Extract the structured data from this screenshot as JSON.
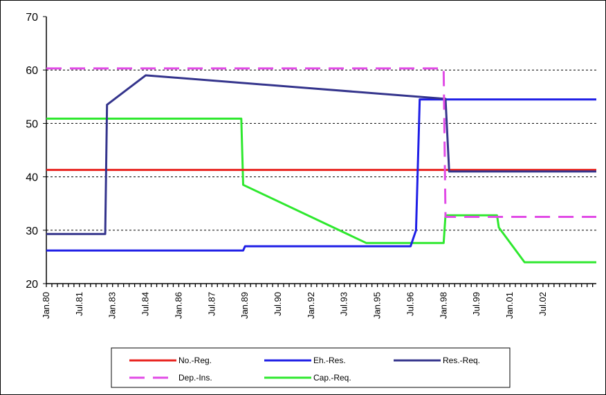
{
  "chart_data": {
    "type": "line",
    "title": "",
    "xlabel": "",
    "ylabel": "",
    "ylim": [
      20,
      70
    ],
    "yticks": [
      20,
      30,
      40,
      50,
      60,
      70
    ],
    "x_range": [
      "Jan.80",
      "Dec.04"
    ],
    "xtick_labels": [
      "Jan.80",
      "Jul.81",
      "Jan.83",
      "Jul.84",
      "Jan.86",
      "Jul.87",
      "Jan.89",
      "Jul.90",
      "Jan.92",
      "Jul.93",
      "Jan.95",
      "Jul.96",
      "Jan.98",
      "Jul.99",
      "Jan.01",
      "Jul.02"
    ],
    "grid": "horizontal dotted at 30, 40, 50, 60",
    "legend_position": "bottom",
    "series": [
      {
        "name": "No.-Reg.",
        "color": "#e8221e",
        "dash": "solid",
        "x": [
          "Jan.80",
          "Dec.04"
        ],
        "y": [
          41.3,
          41.3
        ]
      },
      {
        "name": "Eh.-Res.",
        "color": "#1e1ee6",
        "dash": "solid",
        "x": [
          "Jan.80",
          "Dec.88",
          "Jan.89",
          "Jul.96",
          "Oct.96",
          "Dec.96",
          "Dec.04"
        ],
        "y": [
          26.2,
          26.2,
          27.0,
          27.0,
          30,
          54.5,
          54.5
        ]
      },
      {
        "name": "Res.-Req.",
        "color": "#34348c",
        "dash": "solid",
        "x": [
          "Jan.80",
          "Sep.82",
          "Oct.82",
          "Jul.84",
          "Feb.98",
          "Apr.98",
          "Dec.04"
        ],
        "y": [
          29.3,
          29.3,
          53.5,
          59.0,
          54.6,
          41.0,
          41.0
        ]
      },
      {
        "name": "Dep.-Ins.",
        "color": "#e14be6",
        "dash": "dashed",
        "x": [
          "Jan.80",
          "Jan.98",
          "Feb.98",
          "Dec.04"
        ],
        "y": [
          60.3,
          60.3,
          32.5,
          32.5
        ]
      },
      {
        "name": "Cap.-Req.",
        "color": "#2ee82e",
        "dash": "solid",
        "x": [
          "Jan.80",
          "Nov.88",
          "Dec.88",
          "Jul.94",
          "Jan.98",
          "Feb.98",
          "Jun.00",
          "Jul.00",
          "Sep.01",
          "Dec.04"
        ],
        "y": [
          50.9,
          50.9,
          38.5,
          27.6,
          27.6,
          32.8,
          32.8,
          30.5,
          24.0,
          24.0
        ]
      }
    ]
  }
}
